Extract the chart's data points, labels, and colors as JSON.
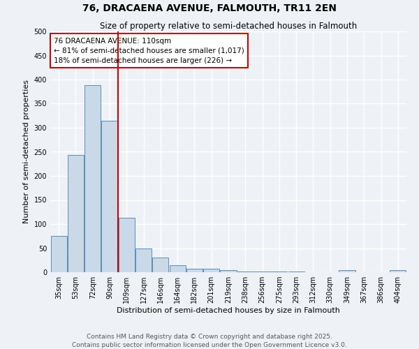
{
  "title": "76, DRACAENA AVENUE, FALMOUTH, TR11 2EN",
  "subtitle": "Size of property relative to semi-detached houses in Falmouth",
  "xlabel": "Distribution of semi-detached houses by size in Falmouth",
  "ylabel": "Number of semi-detached properties",
  "bar_labels": [
    "35sqm",
    "53sqm",
    "72sqm",
    "90sqm",
    "109sqm",
    "127sqm",
    "146sqm",
    "164sqm",
    "182sqm",
    "201sqm",
    "219sqm",
    "238sqm",
    "256sqm",
    "275sqm",
    "293sqm",
    "312sqm",
    "330sqm",
    "349sqm",
    "367sqm",
    "386sqm",
    "404sqm"
  ],
  "bar_values": [
    75,
    243,
    388,
    315,
    113,
    50,
    30,
    14,
    7,
    7,
    5,
    2,
    2,
    1,
    1,
    0,
    0,
    4,
    0,
    0,
    4
  ],
  "bar_color": "#c9d9e8",
  "bar_edge_color": "#5b8db8",
  "red_line_index": 4,
  "annotation_text": "76 DRACAENA AVENUE: 110sqm\n← 81% of semi-detached houses are smaller (1,017)\n18% of semi-detached houses are larger (226) →",
  "annotation_box_color": "white",
  "annotation_box_edge_color": "#cc0000",
  "red_line_color": "#cc0000",
  "footer_line1": "Contains HM Land Registry data © Crown copyright and database right 2025.",
  "footer_line2": "Contains public sector information licensed under the Open Government Licence v3.0.",
  "ylim": [
    0,
    500
  ],
  "yticks": [
    0,
    50,
    100,
    150,
    200,
    250,
    300,
    350,
    400,
    450,
    500
  ],
  "background_color": "#eef2f7",
  "grid_color": "#ffffff",
  "title_fontsize": 10,
  "subtitle_fontsize": 8.5,
  "axis_label_fontsize": 8,
  "tick_fontsize": 7,
  "footer_fontsize": 6.5,
  "annotation_fontsize": 7.5
}
